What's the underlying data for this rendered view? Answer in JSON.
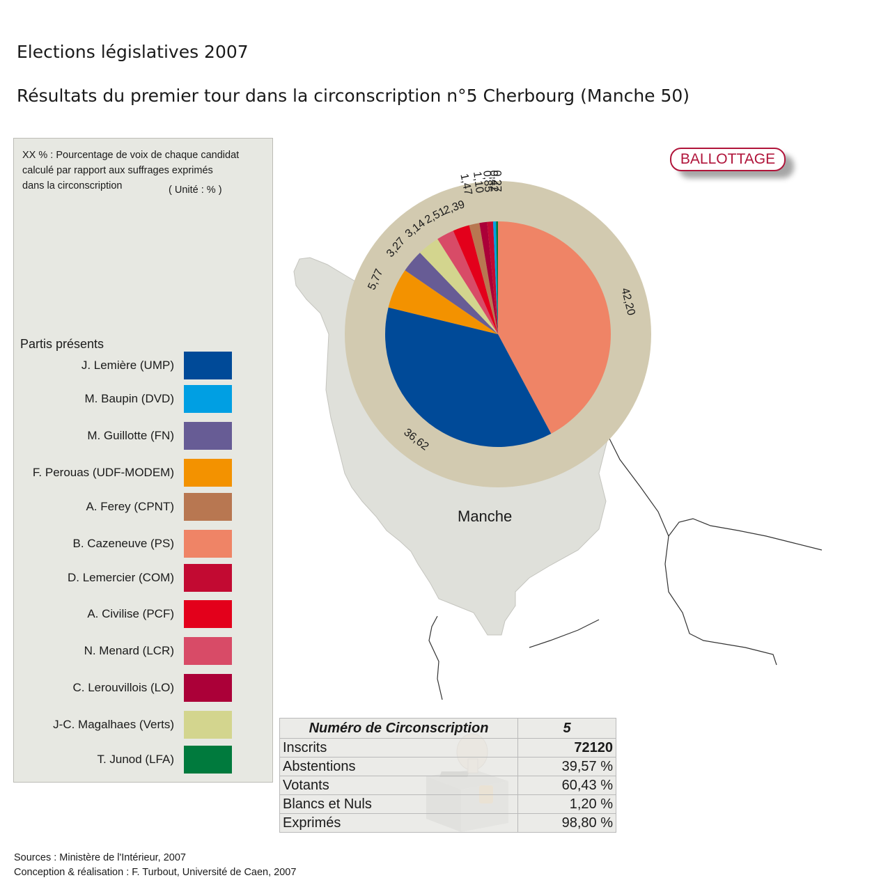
{
  "title": "Elections législatives 2007",
  "subtitle": "Résultats du premier tour dans la circonscription n°5  Cherbourg (Manche 50)",
  "note": {
    "line1": "XX % : Pourcentage de voix de chaque candidat",
    "line2": "calculé par rapport aux suffrages exprimés",
    "line3": "dans la circonscription",
    "unit": "( Unité : % )"
  },
  "badge": "BALLOTTAGE",
  "map_label": "Manche",
  "legend": {
    "title": "Partis présents",
    "items": [
      {
        "label": "J. Lemière (UMP)",
        "color": "#004a98"
      },
      {
        "label": "M. Baupin (DVD)",
        "color": "#009fe3"
      },
      {
        "label": "M. Guillotte (FN)",
        "color": "#675c95"
      },
      {
        "label": "F. Perouas (UDF-MODEM)",
        "color": "#f39200"
      },
      {
        "label": "A. Ferey (CPNT)",
        "color": "#b87751"
      },
      {
        "label": "B. Cazeneuve (PS)",
        "color": "#ef8466"
      },
      {
        "label": "D. Lemercier (COM)",
        "color": "#c20a32"
      },
      {
        "label": "A. Civilise (PCF)",
        "color": "#e3001b"
      },
      {
        "label": "N. Menard (LCR)",
        "color": "#d84b67"
      },
      {
        "label": "C. Lerouvillois (LO)",
        "color": "#ab0038"
      },
      {
        "label": "J-C. Magalhaes (Verts)",
        "color": "#d3d58e"
      },
      {
        "label": "T. Junod (LFA)",
        "color": "#007a3d"
      }
    ]
  },
  "chart_data": {
    "type": "pie",
    "unit": "%",
    "slices": [
      {
        "name": "B. Cazeneuve (PS)",
        "value": 42.2,
        "label": "42,20",
        "color": "#ef8466"
      },
      {
        "name": "J. Lemière (UMP)",
        "value": 36.62,
        "label": "36,62",
        "color": "#004a98"
      },
      {
        "name": "F. Perouas (UDF-MODEM)",
        "value": 5.77,
        "label": "5,77",
        "color": "#f39200"
      },
      {
        "name": "M. Guillotte (FN)",
        "value": 3.27,
        "label": "3,27",
        "color": "#675c95"
      },
      {
        "name": "J-C. Magalhaes (Verts)",
        "value": 3.14,
        "label": "3,14",
        "color": "#d3d58e"
      },
      {
        "name": "N. Menard (LCR)",
        "value": 2.51,
        "label": "2,51",
        "color": "#d84b67"
      },
      {
        "name": "A. Civilise (PCF)",
        "value": 2.39,
        "label": "2,39",
        "color": "#e3001b"
      },
      {
        "name": "A. Ferey (CPNT)",
        "value": 1.47,
        "label": "1,47",
        "color": "#b87751"
      },
      {
        "name": "C. Lerouvillois (LO)",
        "value": 1.1,
        "label": "1,10",
        "color": "#ab0038"
      },
      {
        "name": "D. Lemercier (COM)",
        "value": 0.85,
        "label": "0,85",
        "color": "#c20a32"
      },
      {
        "name": "M. Baupin (DVD)",
        "value": 0.42,
        "label": "0,42",
        "color": "#009fe3"
      },
      {
        "name": "T. Junod (LFA)",
        "value": 0.27,
        "label": "0,27",
        "color": "#007a3d"
      }
    ]
  },
  "stats": {
    "header": {
      "label": "Numéro de Circonscription",
      "value": "5"
    },
    "rows": [
      {
        "label": "Inscrits",
        "value": "72120"
      },
      {
        "label": "Abstentions",
        "value": "39,57 %"
      },
      {
        "label": "Votants",
        "value": "60,43 %"
      },
      {
        "label": "Blancs et Nuls",
        "value": "1,20 %"
      },
      {
        "label": "Exprimés",
        "value": "98,80 %"
      }
    ]
  },
  "footer": {
    "sources": "Sources : Ministère de l'Intérieur, 2007",
    "credits": "Conception & réalisation : F. Turbout, Université de Caen, 2007"
  }
}
